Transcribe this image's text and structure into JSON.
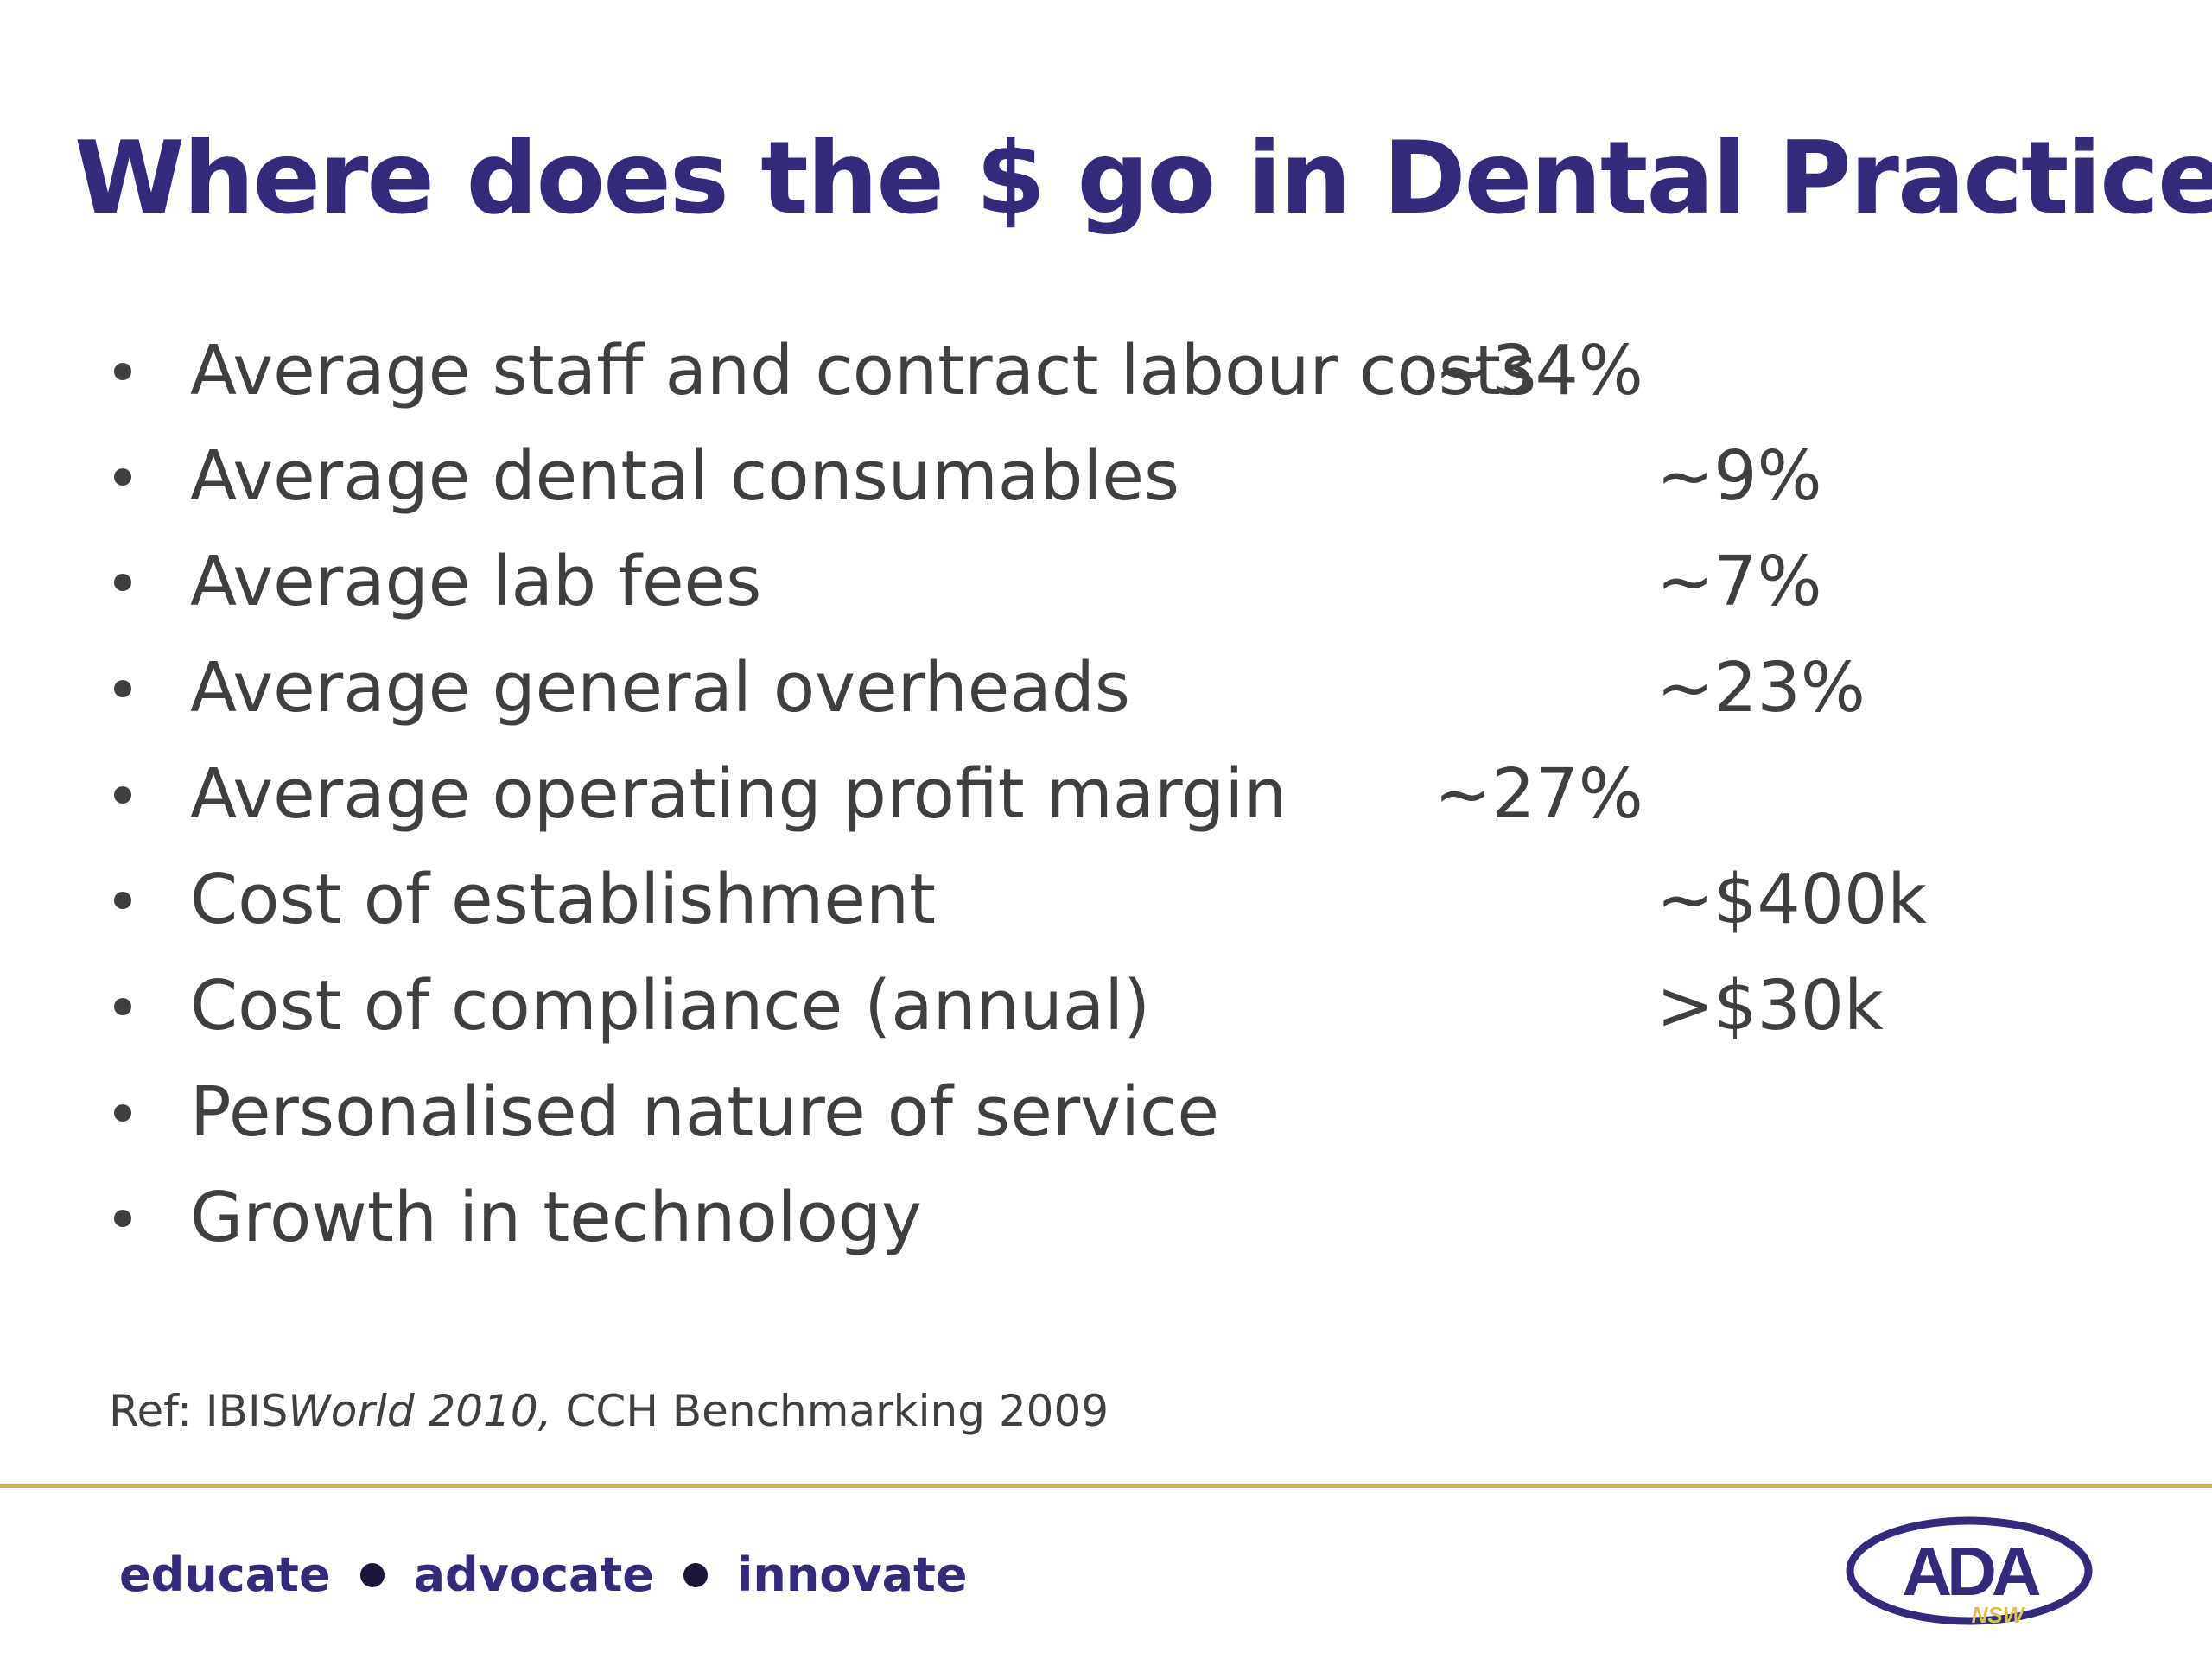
{
  "slide": {
    "title": "Where does the $ go in Dental Practice"
  },
  "bullets": [
    {
      "label": "Average staff and contract labour costs",
      "value": "~34%"
    },
    {
      "label": "Average dental consumables",
      "value": "~9%"
    },
    {
      "label": "Average lab fees",
      "value": "~7%"
    },
    {
      "label": "Average general overheads",
      "value": "~23%"
    },
    {
      "label": "Average operating profit margin",
      "value": "~27%"
    },
    {
      "label": "Cost of establishment",
      "value": "~$400k"
    },
    {
      "label": "Cost of compliance (annual)",
      "value": ">$30k"
    },
    {
      "label": "Personalised nature of service",
      "value": ""
    },
    {
      "label": "Growth in technology",
      "value": ""
    }
  ],
  "reference": {
    "prefix": "Ref: IBIS",
    "italic": "World 2010,",
    "suffix": " CCH Benchmarking 2009"
  },
  "footer": {
    "words": [
      "educate",
      "advocate",
      "innovate"
    ],
    "logo_main": "ADA",
    "logo_sub": "NSW"
  },
  "colors": {
    "title": "#332a7c",
    "body_text": "#3f3f3f",
    "footer_rule": "#c9b75a",
    "logo_accent": "#d9c24a"
  }
}
